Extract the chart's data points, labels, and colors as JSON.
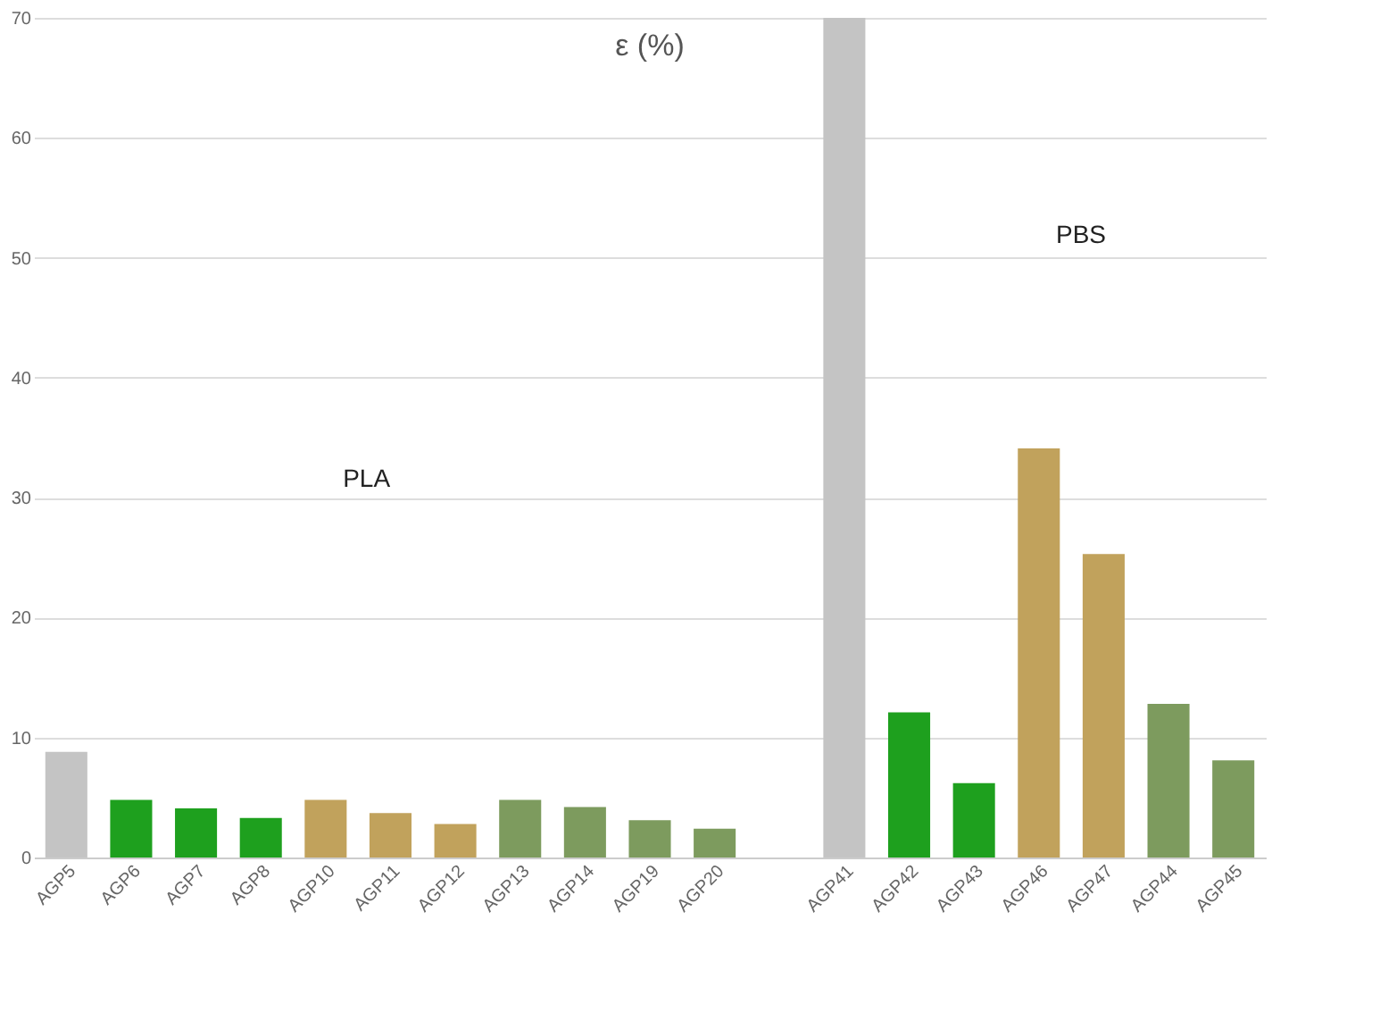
{
  "chart_data": {
    "type": "bar",
    "title": "ε (%)",
    "categories": [
      "AGP5",
      "AGP6",
      "AGP7",
      "AGP8",
      "AGP10",
      "AGP11",
      "AGP12",
      "AGP13",
      "AGP14",
      "AGP19",
      "AGP20",
      null,
      "AGP41",
      "AGP42",
      "AGP43",
      "AGP46",
      "AGP47",
      "AGP44",
      "AGP45"
    ],
    "values": [
      8.8,
      4.8,
      4.1,
      3.3,
      4.8,
      3.7,
      2.8,
      4.8,
      4.2,
      3.1,
      2.4,
      null,
      70,
      12.1,
      6.2,
      34.1,
      25.3,
      12.8,
      8.1
    ],
    "colors": [
      "#c4c4c4",
      "#1ea01e",
      "#1ea01e",
      "#1ea01e",
      "#c1a25c",
      "#c1a25c",
      "#c1a25c",
      "#7d9b5e",
      "#7d9b5e",
      "#7d9b5e",
      "#7d9b5e",
      "#ffffff",
      "#c4c4c4",
      "#1ea01e",
      "#1ea01e",
      "#c1a25c",
      "#c1a25c",
      "#7d9b5e",
      "#7d9b5e"
    ],
    "annotations": [
      "PLA",
      "PBS"
    ],
    "ylim": [
      0,
      70
    ],
    "yticks": [
      0,
      10,
      20,
      30,
      40,
      50,
      60,
      70
    ],
    "grid": "y"
  }
}
